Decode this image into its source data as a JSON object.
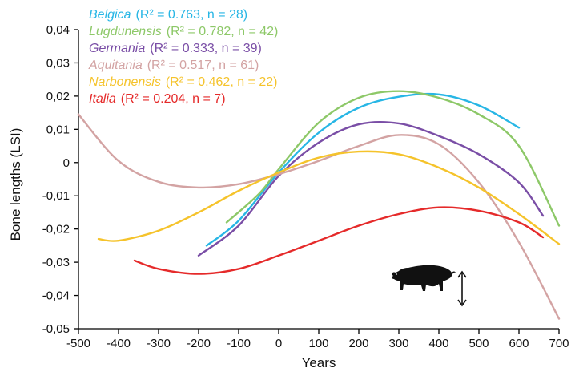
{
  "chart_data": {
    "type": "line",
    "xlabel": "Years",
    "ylabel": "Bone lengths (LSI)",
    "xlim": [
      -500,
      700
    ],
    "ylim": [
      -0.05,
      0.04
    ],
    "x_ticks": [
      "-500",
      "-400",
      "-300",
      "-200",
      "-100",
      "0",
      "100",
      "200",
      "300",
      "400",
      "500",
      "600",
      "700"
    ],
    "y_ticks": [
      "0,04",
      "0,03",
      "0,02",
      "0,01",
      "0",
      "-0,01",
      "-0,02",
      "-0,03",
      "-0,04",
      "-0,05"
    ],
    "grid": false,
    "legend_position": "top-left",
    "series": [
      {
        "name": "Belgica",
        "stats": "(R² = 0.763, n = 28)",
        "color": "#27b6e5",
        "x": [
          -180,
          -100,
          0,
          100,
          200,
          300,
          400,
          500,
          600
        ],
        "y": [
          -0.025,
          -0.0175,
          -0.003,
          0.009,
          0.0165,
          0.0198,
          0.0205,
          0.0172,
          0.0105
        ]
      },
      {
        "name": "Lugdunensis",
        "stats": "(R² = 0.782, n = 42)",
        "color": "#8dc868",
        "x": [
          -130,
          -50,
          0,
          100,
          200,
          300,
          400,
          500,
          600,
          700
        ],
        "y": [
          -0.018,
          -0.0095,
          -0.002,
          0.012,
          0.0195,
          0.0215,
          0.0195,
          0.0145,
          0.005,
          -0.019
        ]
      },
      {
        "name": "Germania",
        "stats": "(R² = 0.333, n = 39)",
        "color": "#7a4ea6",
        "x": [
          -200,
          -100,
          0,
          100,
          200,
          300,
          400,
          500,
          600,
          660
        ],
        "y": [
          -0.028,
          -0.019,
          -0.004,
          0.006,
          0.0115,
          0.0118,
          0.008,
          0.0025,
          -0.006,
          -0.016
        ]
      },
      {
        "name": "Aquitania",
        "stats": "(R² = 0.517, n = 61)",
        "color": "#d3a3a3",
        "x": [
          -500,
          -400,
          -300,
          -200,
          -100,
          0,
          100,
          200,
          300,
          400,
          500,
          600,
          700
        ],
        "y": [
          0.0145,
          0.0005,
          -0.0058,
          -0.0075,
          -0.0065,
          -0.0035,
          0.0005,
          0.005,
          0.0083,
          0.0055,
          -0.006,
          -0.024,
          -0.047
        ]
      },
      {
        "name": "Narbonensis",
        "stats": "(R² = 0.462, n = 22)",
        "color": "#f5c32b",
        "x": [
          -450,
          -400,
          -300,
          -200,
          -100,
          0,
          100,
          200,
          300,
          400,
          500,
          600,
          700
        ],
        "y": [
          -0.023,
          -0.0235,
          -0.0205,
          -0.015,
          -0.0085,
          -0.003,
          0.0015,
          0.0033,
          0.0025,
          -0.0015,
          -0.0075,
          -0.0155,
          -0.0245
        ]
      },
      {
        "name": "Italia",
        "stats": "(R² = 0.204, n = 7)",
        "color": "#e52a2a",
        "x": [
          -360,
          -300,
          -200,
          -100,
          0,
          100,
          200,
          300,
          400,
          500,
          600,
          660
        ],
        "y": [
          -0.0295,
          -0.032,
          -0.0335,
          -0.032,
          -0.028,
          -0.0235,
          -0.019,
          -0.0155,
          -0.0135,
          -0.0145,
          -0.018,
          -0.0225
        ]
      }
    ]
  },
  "icons": {
    "pig": "pig-silhouette-icon",
    "arrow": "vertical-double-arrow-icon"
  }
}
